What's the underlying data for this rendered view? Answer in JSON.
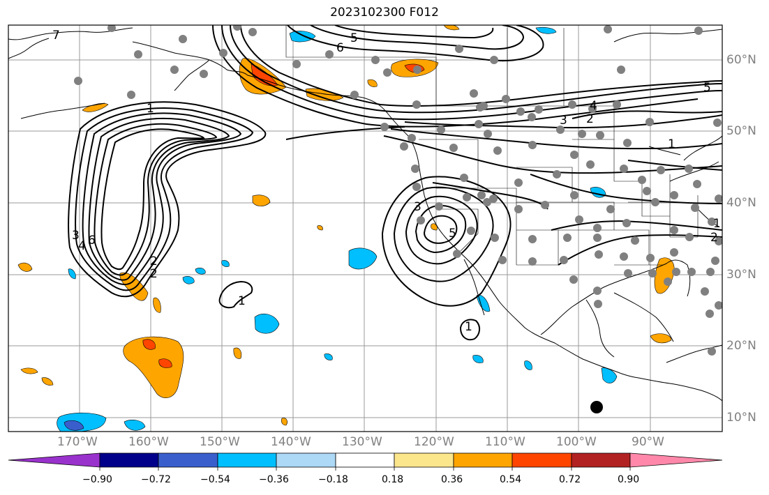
{
  "title": "2023102300 F012",
  "latitude_labels": [
    "60°N",
    "50°N",
    "40°N",
    "30°N",
    "20°N",
    "10°N"
  ],
  "longitude_labels": [
    "170°W",
    "160°W",
    "150°W",
    "140°W",
    "130°W",
    "120°W",
    "110°W",
    "100°W",
    "90°W"
  ],
  "contour_labels": [
    "1",
    "5",
    "6",
    "7",
    "2",
    "3",
    "4",
    "6",
    "5",
    "1",
    "3",
    "2",
    "4",
    "1",
    "2",
    "3",
    "5",
    "1",
    "1",
    "2"
  ],
  "colorbar": {
    "tick_labels": [
      "−0.90",
      "−0.72",
      "−0.54",
      "−0.36",
      "−0.18",
      "0.18",
      "0.36",
      "0.54",
      "0.72",
      "0.90"
    ],
    "colors": [
      "#9932cc",
      "#00008b",
      "#3a5fcd",
      "#00bfff",
      "#add8f6",
      "#ffffff",
      "#fce68c",
      "#ffa500",
      "#ff4500",
      "#b22222",
      "#ff88aa"
    ]
  }
}
